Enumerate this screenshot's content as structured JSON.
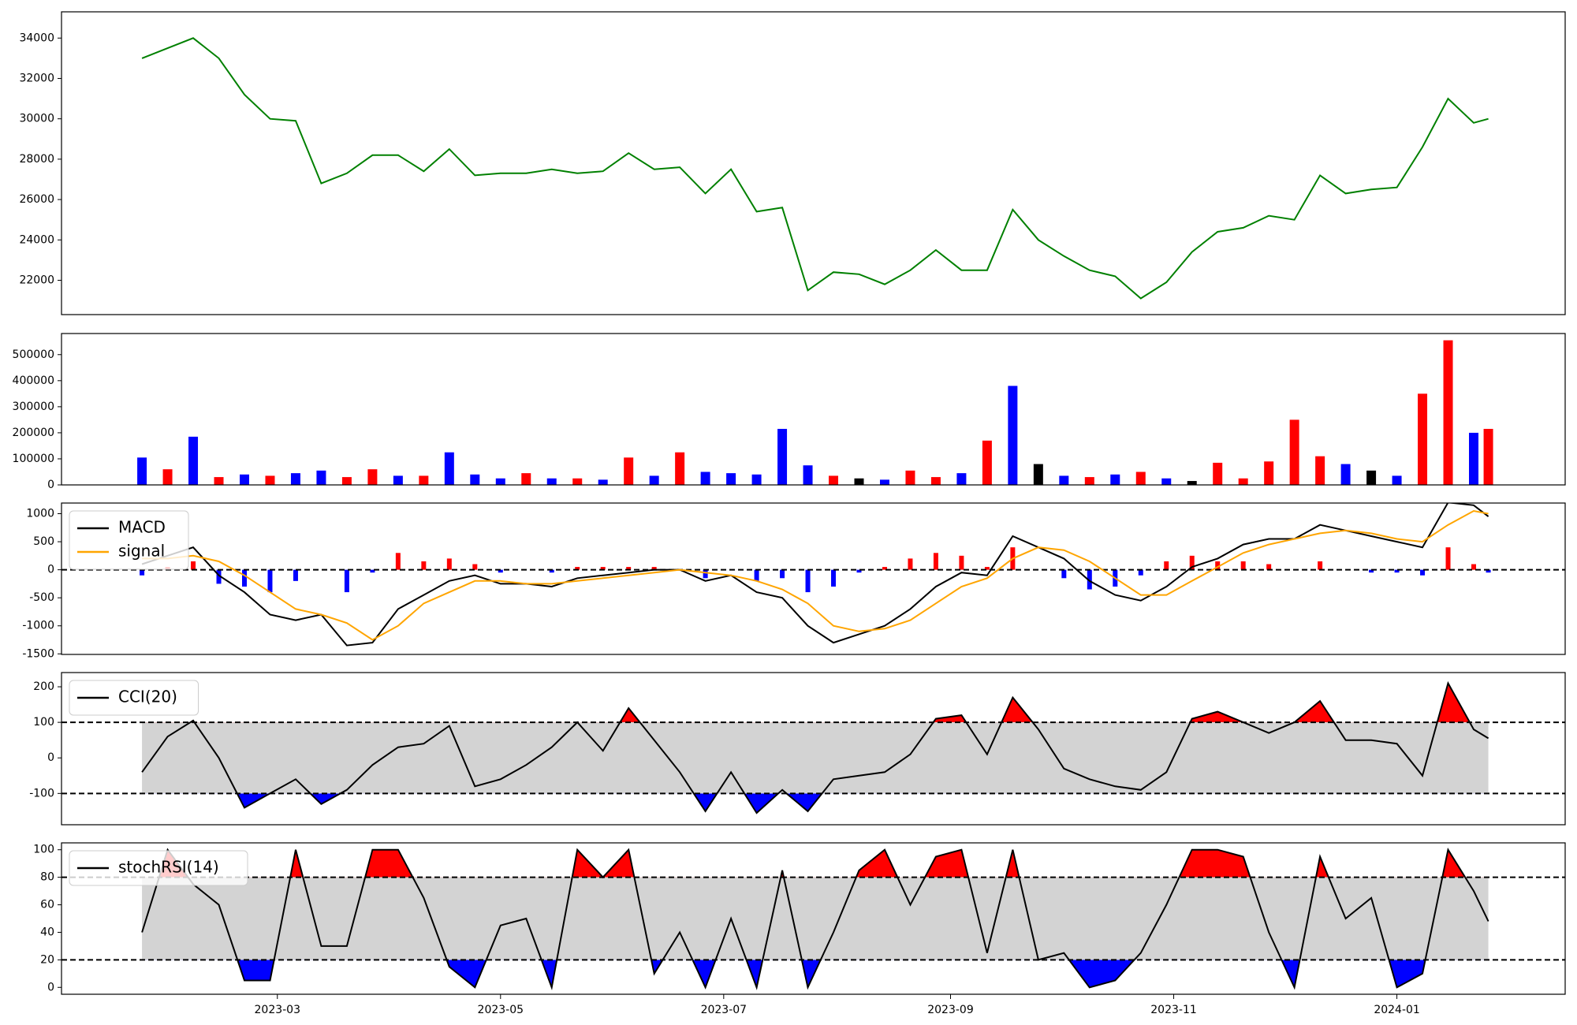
{
  "chart_data": [
    {
      "type": "line",
      "x": [
        "2023-01-23",
        "2023-01-30",
        "2023-02-06",
        "2023-02-13",
        "2023-02-20",
        "2023-02-27",
        "2023-03-06",
        "2023-03-13",
        "2023-03-20",
        "2023-03-27",
        "2023-04-03",
        "2023-04-10",
        "2023-04-17",
        "2023-04-24",
        "2023-05-01",
        "2023-05-08",
        "2023-05-15",
        "2023-05-22",
        "2023-05-29",
        "2023-06-05",
        "2023-06-12",
        "2023-06-19",
        "2023-06-26",
        "2023-07-03",
        "2023-07-10",
        "2023-07-17",
        "2023-07-24",
        "2023-07-31",
        "2023-08-07",
        "2023-08-14",
        "2023-08-21",
        "2023-08-28",
        "2023-09-04",
        "2023-09-11",
        "2023-09-18",
        "2023-09-25",
        "2023-10-02",
        "2023-10-09",
        "2023-10-16",
        "2023-10-23",
        "2023-10-30",
        "2023-11-06",
        "2023-11-13",
        "2023-11-20",
        "2023-11-27",
        "2023-12-04",
        "2023-12-11",
        "2023-12-18",
        "2023-12-25",
        "2024-01-01",
        "2024-01-08",
        "2024-01-15",
        "2024-01-22",
        "2024-01-26"
      ],
      "xlim": [
        "2023-01-01",
        "2024-02-16"
      ],
      "series": [
        {
          "color": "green",
          "values": [
            33000,
            33500,
            34000,
            33000,
            31200,
            30000,
            29900,
            26800,
            27300,
            28200,
            28200,
            27400,
            28500,
            27200,
            27300,
            27300,
            27500,
            27300,
            27400,
            28300,
            27500,
            27600,
            26300,
            27500,
            25400,
            25600,
            21500,
            22400,
            22300,
            21800,
            22500,
            23500,
            22500,
            22500,
            25500,
            24000,
            23200,
            22500,
            22200,
            21100,
            21900,
            23400,
            24400,
            24600,
            25200,
            25000,
            27200,
            26300,
            26500,
            26600,
            28600,
            31000,
            29800,
            30000
          ]
        }
      ],
      "ylim": [
        20300,
        35300
      ],
      "yticks": [
        22000,
        24000,
        26000,
        28000,
        30000,
        32000,
        34000
      ]
    },
    {
      "type": "bar",
      "x": [
        "2023-01-23",
        "2023-01-30",
        "2023-02-06",
        "2023-02-13",
        "2023-02-20",
        "2023-02-27",
        "2023-03-06",
        "2023-03-13",
        "2023-03-20",
        "2023-03-27",
        "2023-04-03",
        "2023-04-10",
        "2023-04-17",
        "2023-04-24",
        "2023-05-01",
        "2023-05-08",
        "2023-05-15",
        "2023-05-22",
        "2023-05-29",
        "2023-06-05",
        "2023-06-12",
        "2023-06-19",
        "2023-06-26",
        "2023-07-03",
        "2023-07-10",
        "2023-07-17",
        "2023-07-24",
        "2023-07-31",
        "2023-08-07",
        "2023-08-14",
        "2023-08-21",
        "2023-08-28",
        "2023-09-04",
        "2023-09-11",
        "2023-09-18",
        "2023-09-25",
        "2023-10-02",
        "2023-10-09",
        "2023-10-16",
        "2023-10-23",
        "2023-10-30",
        "2023-11-06",
        "2023-11-13",
        "2023-11-20",
        "2023-11-27",
        "2023-12-04",
        "2023-12-11",
        "2023-12-18",
        "2023-12-25",
        "2024-01-01",
        "2024-01-08",
        "2024-01-15",
        "2024-01-22",
        "2024-01-26"
      ],
      "xlim": [
        "2023-01-01",
        "2024-02-16"
      ],
      "series": [
        {
          "values": [
            105000,
            60000,
            185000,
            30000,
            40000,
            35000,
            45000,
            55000,
            30000,
            60000,
            35000,
            35000,
            125000,
            40000,
            25000,
            45000,
            25000,
            25000,
            20000,
            105000,
            35000,
            125000,
            50000,
            45000,
            40000,
            215000,
            75000,
            35000,
            25000,
            20000,
            55000,
            30000,
            45000,
            170000,
            380000,
            80000,
            35000,
            30000,
            40000,
            50000,
            25000,
            15000,
            85000,
            25000,
            90000,
            250000,
            110000,
            80000,
            55000,
            35000,
            350000,
            555000,
            200000,
            215000
          ],
          "colors": [
            "blue",
            "red",
            "blue",
            "red",
            "blue",
            "red",
            "blue",
            "blue",
            "red",
            "red",
            "blue",
            "red",
            "blue",
            "blue",
            "blue",
            "red",
            "blue",
            "red",
            "blue",
            "red",
            "blue",
            "red",
            "blue",
            "blue",
            "blue",
            "blue",
            "blue",
            "red",
            "black",
            "blue",
            "red",
            "red",
            "blue",
            "red",
            "blue",
            "black",
            "blue",
            "red",
            "blue",
            "red",
            "blue",
            "black",
            "red",
            "red",
            "red",
            "red",
            "red",
            "blue",
            "black",
            "blue",
            "red",
            "red",
            "blue",
            "red"
          ]
        }
      ],
      "ylim": [
        0,
        581000
      ],
      "yticks": [
        0,
        100000,
        200000,
        300000,
        400000,
        500000
      ]
    },
    {
      "type": "macd",
      "x": [
        "2023-01-23",
        "2023-01-30",
        "2023-02-06",
        "2023-02-13",
        "2023-02-20",
        "2023-02-27",
        "2023-03-06",
        "2023-03-13",
        "2023-03-20",
        "2023-03-27",
        "2023-04-03",
        "2023-04-10",
        "2023-04-17",
        "2023-04-24",
        "2023-05-01",
        "2023-05-08",
        "2023-05-15",
        "2023-05-22",
        "2023-05-29",
        "2023-06-05",
        "2023-06-12",
        "2023-06-19",
        "2023-06-26",
        "2023-07-03",
        "2023-07-10",
        "2023-07-17",
        "2023-07-24",
        "2023-07-31",
        "2023-08-07",
        "2023-08-14",
        "2023-08-21",
        "2023-08-28",
        "2023-09-04",
        "2023-09-11",
        "2023-09-18",
        "2023-09-25",
        "2023-10-02",
        "2023-10-09",
        "2023-10-16",
        "2023-10-23",
        "2023-10-30",
        "2023-11-06",
        "2023-11-13",
        "2023-11-20",
        "2023-11-27",
        "2023-12-04",
        "2023-12-11",
        "2023-12-18",
        "2023-12-25",
        "2024-01-01",
        "2024-01-08",
        "2024-01-15",
        "2024-01-22",
        "2024-01-26"
      ],
      "xlim": [
        "2023-01-01",
        "2024-02-16"
      ],
      "series": [
        {
          "name": "MACD",
          "color": "black",
          "values": [
            100,
            250,
            400,
            -100,
            -400,
            -800,
            -900,
            -800,
            -1350,
            -1300,
            -700,
            -450,
            -200,
            -100,
            -250,
            -250,
            -300,
            -150,
            -100,
            -50,
            0,
            0,
            -200,
            -100,
            -400,
            -500,
            -1000,
            -1300,
            -1150,
            -1000,
            -700,
            -300,
            -50,
            -100,
            600,
            400,
            200,
            -200,
            -450,
            -550,
            -300,
            50,
            200,
            450,
            550,
            550,
            800,
            700,
            600,
            500,
            400,
            1200,
            1150,
            950
          ]
        },
        {
          "name": "signal",
          "color": "orange",
          "values": [
            200,
            200,
            250,
            150,
            -100,
            -400,
            -700,
            -800,
            -950,
            -1250,
            -1000,
            -600,
            -400,
            -200,
            -200,
            -250,
            -250,
            -200,
            -150,
            -100,
            -50,
            0,
            -50,
            -100,
            -200,
            -350,
            -600,
            -1000,
            -1100,
            -1050,
            -900,
            -600,
            -300,
            -150,
            200,
            400,
            350,
            150,
            -150,
            -450,
            -450,
            -200,
            50,
            300,
            450,
            550,
            650,
            700,
            650,
            550,
            500,
            800,
            1050,
            1000
          ]
        }
      ],
      "hist": {
        "values": [
          -100,
          50,
          150,
          -250,
          -300,
          -400,
          -200,
          0,
          -400,
          -50,
          300,
          150,
          200,
          100,
          -50,
          0,
          -50,
          50,
          50,
          50,
          50,
          0,
          -150,
          0,
          -200,
          -150,
          -400,
          -300,
          -50,
          50,
          200,
          300,
          250,
          50,
          400,
          0,
          -150,
          -350,
          -300,
          -100,
          150,
          250,
          150,
          150,
          100,
          0,
          150,
          0,
          -50,
          -50,
          -100,
          400,
          100,
          -50
        ],
        "pos_color": "red",
        "neg_color": "blue"
      },
      "hline": 0,
      "legend": "upper left",
      "ylim": [
        -1510,
        1190
      ],
      "yticks": [
        -1500,
        -1000,
        -500,
        0,
        500,
        1000
      ]
    },
    {
      "type": "oscillator",
      "x": [
        "2023-01-23",
        "2023-01-30",
        "2023-02-06",
        "2023-02-13",
        "2023-02-20",
        "2023-02-27",
        "2023-03-06",
        "2023-03-13",
        "2023-03-20",
        "2023-03-27",
        "2023-04-03",
        "2023-04-10",
        "2023-04-17",
        "2023-04-24",
        "2023-05-01",
        "2023-05-08",
        "2023-05-15",
        "2023-05-22",
        "2023-05-29",
        "2023-06-05",
        "2023-06-12",
        "2023-06-19",
        "2023-06-26",
        "2023-07-03",
        "2023-07-10",
        "2023-07-17",
        "2023-07-24",
        "2023-07-31",
        "2023-08-07",
        "2023-08-14",
        "2023-08-21",
        "2023-08-28",
        "2023-09-04",
        "2023-09-11",
        "2023-09-18",
        "2023-09-25",
        "2023-10-02",
        "2023-10-09",
        "2023-10-16",
        "2023-10-23",
        "2023-10-30",
        "2023-11-06",
        "2023-11-13",
        "2023-11-20",
        "2023-11-27",
        "2023-12-04",
        "2023-12-11",
        "2023-12-18",
        "2023-12-25",
        "2024-01-01",
        "2024-01-08",
        "2024-01-15",
        "2024-01-22",
        "2024-01-26"
      ],
      "xlim": [
        "2023-01-01",
        "2024-02-16"
      ],
      "series": [
        {
          "name": "CCI(20)",
          "color": "black",
          "values": [
            -40,
            60,
            105,
            0,
            -140,
            -100,
            -60,
            -130,
            -90,
            -20,
            30,
            40,
            90,
            -80,
            -60,
            -20,
            30,
            100,
            20,
            140,
            50,
            -40,
            -150,
            -40,
            -155,
            -90,
            -150,
            -60,
            -50,
            -40,
            10,
            110,
            120,
            10,
            170,
            80,
            -30,
            -60,
            -80,
            -90,
            -40,
            110,
            130,
            100,
            70,
            100,
            160,
            50,
            50,
            40,
            -50,
            210,
            80,
            55
          ]
        }
      ],
      "bands": [
        -100,
        100
      ],
      "upper_color": "red",
      "lower_color": "blue",
      "band_color": "lightgray",
      "legend": "upper left",
      "ylim": [
        -188,
        240
      ],
      "yticks": [
        -100,
        0,
        100,
        200
      ]
    },
    {
      "type": "oscillator",
      "x": [
        "2023-01-23",
        "2023-01-30",
        "2023-02-06",
        "2023-02-13",
        "2023-02-20",
        "2023-02-27",
        "2023-03-06",
        "2023-03-13",
        "2023-03-20",
        "2023-03-27",
        "2023-04-03",
        "2023-04-10",
        "2023-04-17",
        "2023-04-24",
        "2023-05-01",
        "2023-05-08",
        "2023-05-15",
        "2023-05-22",
        "2023-05-29",
        "2023-06-05",
        "2023-06-12",
        "2023-06-19",
        "2023-06-26",
        "2023-07-03",
        "2023-07-10",
        "2023-07-17",
        "2023-07-24",
        "2023-07-31",
        "2023-08-07",
        "2023-08-14",
        "2023-08-21",
        "2023-08-28",
        "2023-09-04",
        "2023-09-11",
        "2023-09-18",
        "2023-09-25",
        "2023-10-02",
        "2023-10-09",
        "2023-10-16",
        "2023-10-23",
        "2023-10-30",
        "2023-11-06",
        "2023-11-13",
        "2023-11-20",
        "2023-11-27",
        "2023-12-04",
        "2023-12-11",
        "2023-12-18",
        "2023-12-25",
        "2024-01-01",
        "2024-01-08",
        "2024-01-15",
        "2024-01-22",
        "2024-01-26"
      ],
      "xlim": [
        "2023-01-01",
        "2024-02-16"
      ],
      "xticks": [
        {
          "value": "2023-03-01",
          "label": "2023-03"
        },
        {
          "value": "2023-05-01",
          "label": "2023-05"
        },
        {
          "value": "2023-07-01",
          "label": "2023-07"
        },
        {
          "value": "2023-09-01",
          "label": "2023-09"
        },
        {
          "value": "2023-11-01",
          "label": "2023-11"
        },
        {
          "value": "2024-01-01",
          "label": "2024-01"
        }
      ],
      "series": [
        {
          "name": "stochRSI(14)",
          "color": "black",
          "values": [
            40,
            100,
            75,
            60,
            5,
            5,
            100,
            30,
            30,
            100,
            100,
            65,
            15,
            0,
            45,
            50,
            0,
            100,
            80,
            100,
            10,
            40,
            0,
            50,
            0,
            85,
            0,
            40,
            85,
            100,
            60,
            95,
            100,
            25,
            100,
            20,
            25,
            0,
            5,
            25,
            60,
            100,
            100,
            95,
            40,
            0,
            95,
            50,
            65,
            0,
            10,
            100,
            70,
            48
          ]
        }
      ],
      "bands": [
        20,
        80
      ],
      "upper_color": "red",
      "lower_color": "blue",
      "band_color": "lightgray",
      "legend": "upper left",
      "ylim": [
        -5,
        105
      ],
      "yticks": [
        0,
        20,
        40,
        60,
        80,
        100
      ]
    }
  ]
}
